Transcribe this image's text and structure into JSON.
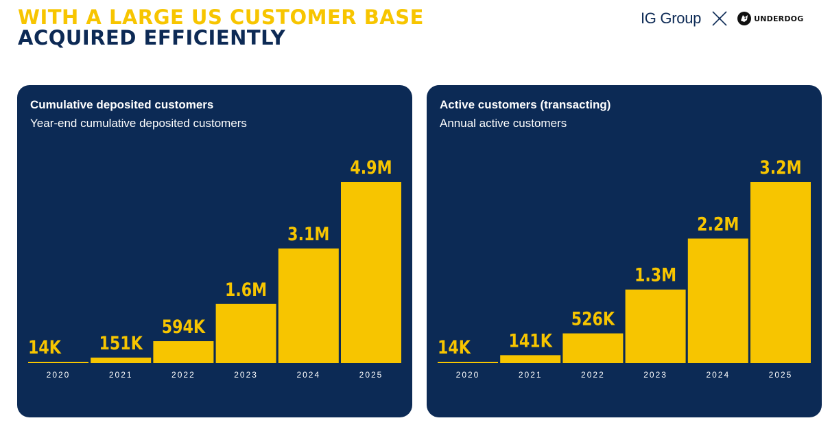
{
  "header": {
    "line1": "WITH A LARGE US CUSTOMER BASE",
    "line2": "ACQUIRED EFFICIENTLY",
    "brand_left": "IG Group",
    "brand_right": "UNDERDOG",
    "brand_separator_icon": "x-icon",
    "brand_logo_icon": "dog-logo-icon"
  },
  "colors": {
    "accent": "#f7c500",
    "panel_bg": "#0c2a55",
    "navy_text": "#0d2a55"
  },
  "chart_data": [
    {
      "type": "bar",
      "title": "Cumulative deposited customers",
      "subtitle": "Year-end cumulative deposited customers",
      "categories": [
        "2020",
        "2021",
        "2022",
        "2023",
        "2024",
        "2025"
      ],
      "values": [
        0.014,
        0.151,
        0.594,
        1.6,
        3.1,
        4.9
      ],
      "data_labels": [
        "14K",
        "151K",
        "594K",
        "1.6M",
        "3.1M",
        "4.9M"
      ],
      "ylim": [
        0,
        4.9
      ],
      "grid": false,
      "bar_color": "#f7c500"
    },
    {
      "type": "bar",
      "title": "Active customers (transacting)",
      "subtitle": "Annual active customers",
      "categories": [
        "2020",
        "2021",
        "2022",
        "2023",
        "2024",
        "2025"
      ],
      "values": [
        0.014,
        0.141,
        0.526,
        1.3,
        2.2,
        3.2
      ],
      "data_labels": [
        "14K",
        "141K",
        "526K",
        "1.3M",
        "2.2M",
        "3.2M"
      ],
      "ylim": [
        0,
        3.2
      ],
      "grid": false,
      "bar_color": "#f7c500"
    }
  ]
}
